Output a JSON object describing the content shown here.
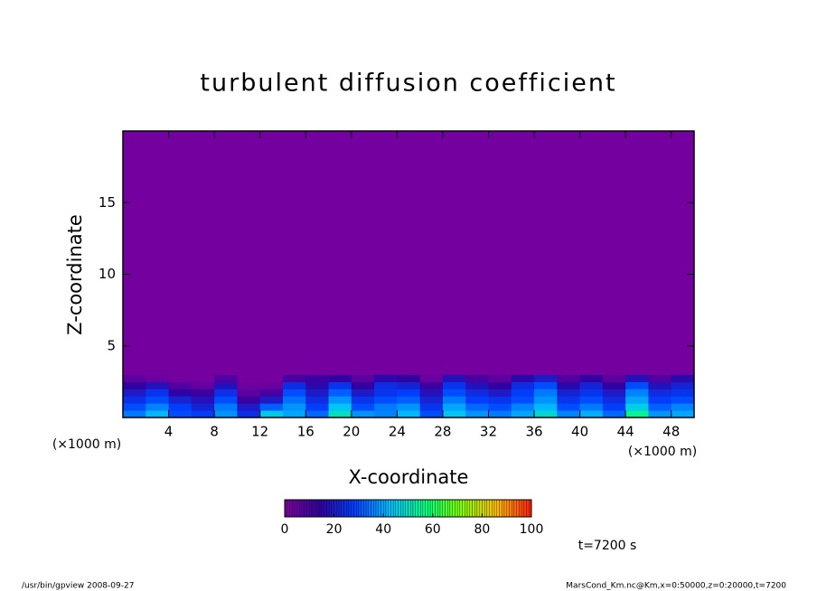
{
  "chart_data": {
    "type": "heatmap",
    "title": "turbulent diffusion coefficient",
    "xlabel": "X-coordinate",
    "ylabel": "Z-coordinate",
    "x_unit": "(×1000 m)",
    "xlim": [
      0,
      50
    ],
    "ylim": [
      0,
      20
    ],
    "xticks": [
      4,
      8,
      12,
      16,
      20,
      24,
      28,
      32,
      36,
      40,
      44,
      48
    ],
    "yticks": [
      5,
      10,
      15
    ],
    "xbins": [
      0,
      2,
      4,
      6,
      8,
      10,
      12,
      14,
      16,
      18,
      20,
      22,
      24,
      26,
      28,
      30,
      32,
      34,
      36,
      38,
      40,
      42,
      44,
      46,
      48,
      50
    ],
    "zbins": [
      0,
      0.5,
      1,
      1.5,
      2,
      2.5,
      3,
      20
    ],
    "values": [
      [
        35,
        42,
        30,
        28,
        38,
        25,
        45,
        40,
        33,
        50,
        38,
        36,
        42,
        30,
        44,
        38,
        35,
        40,
        48,
        36,
        41,
        33,
        55,
        38,
        40
      ],
      [
        30,
        36,
        28,
        22,
        35,
        20,
        32,
        38,
        28,
        44,
        30,
        35,
        38,
        26,
        40,
        33,
        30,
        36,
        42,
        30,
        35,
        28,
        46,
        32,
        36
      ],
      [
        25,
        30,
        22,
        18,
        30,
        12,
        20,
        34,
        24,
        38,
        26,
        30,
        32,
        22,
        35,
        28,
        26,
        30,
        38,
        26,
        30,
        24,
        40,
        28,
        30
      ],
      [
        20,
        26,
        15,
        12,
        25,
        6,
        10,
        30,
        20,
        32,
        20,
        26,
        28,
        18,
        30,
        24,
        20,
        28,
        35,
        22,
        26,
        20,
        36,
        24,
        26
      ],
      [
        14,
        18,
        8,
        5,
        18,
        3,
        4,
        24,
        16,
        26,
        14,
        24,
        22,
        12,
        26,
        18,
        14,
        24,
        30,
        16,
        22,
        14,
        30,
        18,
        22
      ],
      [
        6,
        4,
        2,
        2,
        8,
        2,
        2,
        10,
        12,
        14,
        6,
        16,
        14,
        4,
        18,
        10,
        6,
        16,
        20,
        8,
        14,
        6,
        18,
        8,
        16
      ],
      [
        2,
        2,
        2,
        2,
        2,
        2,
        2,
        2,
        2,
        2,
        2,
        2,
        2,
        2,
        2,
        2,
        2,
        2,
        2,
        2,
        2,
        2,
        2,
        2,
        2
      ]
    ],
    "colorbar_lim": [
      0,
      100
    ],
    "colorbar_ticks": [
      0,
      20,
      40,
      60,
      80,
      100
    ],
    "colormap": [
      "#8000a0",
      "#3000a0",
      "#0040ff",
      "#00c0ff",
      "#00ff80",
      "#80ff00",
      "#ffc000",
      "#ff2000"
    ],
    "annotation": "t=7200 s",
    "footer_left": "/usr/bin/gpview  2008-09-27",
    "footer_right": "MarsCond_Km.nc@Km,x=0:50000,z=0:20000,t=7200"
  }
}
